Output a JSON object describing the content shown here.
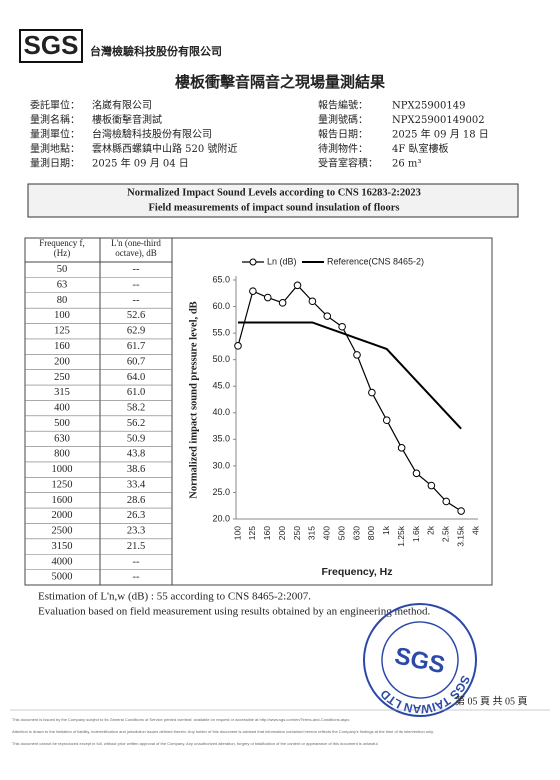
{
  "header": {
    "logo": "SGS",
    "company": "台灣檢驗科技股份有限公司",
    "title": "樓板衝擊音隔音之現場量測結果"
  },
  "info": {
    "left": [
      {
        "label": "委託單位：",
        "value": "洺崴有限公司"
      },
      {
        "label": "量測名稱：",
        "value": "樓板衝擊音測試"
      },
      {
        "label": "量測單位：",
        "value": "台灣檢驗科技股份有限公司"
      },
      {
        "label": "量測地點：",
        "value": "雲林縣西螺鎮中山路 520 號附近"
      },
      {
        "label": "量測日期：",
        "value": "2025 年 09 月 04 日"
      }
    ],
    "right": [
      {
        "label": "報告編號：",
        "value": "NPX25900149"
      },
      {
        "label": "量測號碼：",
        "value": "NPX25900149002"
      },
      {
        "label": "報告日期：",
        "value": "2025 年 09 月 18 日"
      },
      {
        "label": "待測物件：",
        "value": "4F 臥室樓板"
      },
      {
        "label": "受音室容積：",
        "value": "26 m³"
      }
    ]
  },
  "banner": {
    "line1": "Normalized Impact Sound Levels according to CNS 16283-2:2023",
    "line2": "Field measurements of impact sound insulation of floors"
  },
  "table": {
    "headers": [
      "Frequency f,\n(Hz)",
      "L'n (one-third\noctave), dB"
    ],
    "rows": [
      [
        "50",
        "--"
      ],
      [
        "63",
        "--"
      ],
      [
        "80",
        "--"
      ],
      [
        "100",
        "52.6"
      ],
      [
        "125",
        "62.9"
      ],
      [
        "160",
        "61.7"
      ],
      [
        "200",
        "60.7"
      ],
      [
        "250",
        "64.0"
      ],
      [
        "315",
        "61.0"
      ],
      [
        "400",
        "58.2"
      ],
      [
        "500",
        "56.2"
      ],
      [
        "630",
        "50.9"
      ],
      [
        "800",
        "43.8"
      ],
      [
        "1000",
        "38.6"
      ],
      [
        "1250",
        "33.4"
      ],
      [
        "1600",
        "28.6"
      ],
      [
        "2000",
        "26.3"
      ],
      [
        "2500",
        "23.3"
      ],
      [
        "3150",
        "21.5"
      ],
      [
        "4000",
        "--"
      ],
      [
        "5000",
        "--"
      ]
    ]
  },
  "chart_data": {
    "type": "line",
    "x_label": "Frequency, Hz",
    "y_label": "Normalized impact sound pressure level, dB",
    "categories": [
      "100",
      "125",
      "160",
      "200",
      "250",
      "315",
      "400",
      "500",
      "630",
      "800",
      "1k",
      "1.25k",
      "1.6k",
      "2k",
      "2.5k",
      "3.15k",
      "4k"
    ],
    "series": [
      {
        "name": "Ln (dB)",
        "color": "#000000",
        "marker": "circle",
        "values": [
          52.6,
          62.9,
          61.7,
          60.7,
          64.0,
          61.0,
          58.2,
          56.2,
          50.9,
          43.8,
          38.6,
          33.4,
          28.6,
          26.3,
          23.3,
          21.5,
          null
        ]
      },
      {
        "name": "Reference(CNS 8465-2)",
        "color": "#000000",
        "marker": "none",
        "values": [
          57,
          57,
          57,
          57,
          57,
          57,
          56,
          55,
          54,
          53,
          52,
          49,
          46,
          43,
          40,
          37,
          null
        ]
      }
    ],
    "ylim": [
      20,
      65
    ],
    "yticks": [
      {
        "value": 20,
        "label": "20.0"
      },
      {
        "value": 25,
        "label": "25.0"
      },
      {
        "value": 30,
        "label": "30.0"
      },
      {
        "value": 35,
        "label": "35.0"
      },
      {
        "value": 40,
        "label": "40.0"
      },
      {
        "value": 45,
        "label": "45.0"
      },
      {
        "value": 50,
        "label": "50.0"
      },
      {
        "value": 55,
        "label": "55.0"
      },
      {
        "value": 60,
        "label": "60.0"
      },
      {
        "value": 65,
        "label": "65.0"
      }
    ],
    "grid": false,
    "legend": "top"
  },
  "notes": [
    "Estimation of L'n,w (dB) : 55 according to CNS 8465-2:2007.",
    "Evaluation based on field measurement using results obtained by an engineering method."
  ],
  "stamp": {
    "ring": "SGS TAIWAN LTD",
    "logo": "SGS"
  },
  "page": "第 05 頁 共 05 頁",
  "fine_print": [
    "This document is issued by the Company subject to its General Conditions of Service printed overleaf, available on request or accessible at http://www.sgs.com/en/Terms-and-Conditions.aspx.",
    "Attention is drawn to the limitation of liability, indemnification and jurisdiction issues defined therein. Any holder of this document is advised that information contained hereon reflects the Company's findings at the time of its intervention only.",
    "This document cannot be reproduced except in full, without prior written approval of the Company. Any unauthorized alteration, forgery or falsification of the content or appearance of this document is unlawful."
  ]
}
